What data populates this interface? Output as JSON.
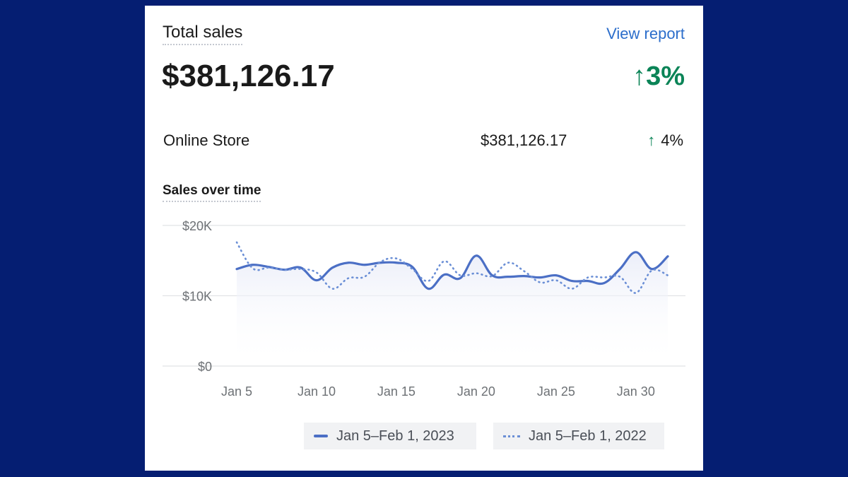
{
  "header": {
    "title": "Total sales",
    "view_report_label": "View report",
    "total_value": "$381,126.17",
    "total_change": "3%"
  },
  "breakdown": {
    "channel": "Online Store",
    "value": "$381,126.17",
    "change": "4%"
  },
  "chart_section": {
    "title": "Sales over time"
  },
  "colors": {
    "accent": "#2c6ecb",
    "positive": "#0b8457",
    "series_current": "#4b6fc5",
    "series_previous": "#6b8fd6",
    "background": "#051e72"
  },
  "chart_data": {
    "type": "line",
    "title": "Sales over time",
    "xlabel": "",
    "ylabel": "",
    "ylim": [
      0,
      20000
    ],
    "y_ticks": [
      0,
      10000,
      20000
    ],
    "y_tick_labels": [
      "$0",
      "$10K",
      "$20K"
    ],
    "x_tick_days": [
      5,
      10,
      15,
      20,
      25,
      30
    ],
    "x_tick_labels": [
      "Jan 5",
      "Jan 10",
      "Jan 15",
      "Jan 20",
      "Jan 25",
      "Jan 30"
    ],
    "grid": true,
    "legend_position": "bottom",
    "x": [
      "Jan 5",
      "Jan 6",
      "Jan 7",
      "Jan 8",
      "Jan 9",
      "Jan 10",
      "Jan 11",
      "Jan 12",
      "Jan 13",
      "Jan 14",
      "Jan 15",
      "Jan 16",
      "Jan 17",
      "Jan 18",
      "Jan 19",
      "Jan 20",
      "Jan 21",
      "Jan 22",
      "Jan 23",
      "Jan 24",
      "Jan 25",
      "Jan 26",
      "Jan 27",
      "Jan 28",
      "Jan 29",
      "Jan 30",
      "Jan 31",
      "Feb 1"
    ],
    "series": [
      {
        "name": "Jan 5–Feb 1, 2023",
        "style": "solid",
        "values": [
          13800,
          14400,
          14100,
          13700,
          14000,
          12200,
          14000,
          14700,
          14400,
          14700,
          14700,
          14100,
          11000,
          13000,
          12500,
          15700,
          12900,
          12700,
          12800,
          12600,
          12900,
          12100,
          12100,
          11800,
          13800,
          16200,
          13800,
          15600
        ]
      },
      {
        "name": "Jan 5–Feb 1, 2022",
        "style": "dotted",
        "values": [
          17600,
          13900,
          14000,
          13700,
          13800,
          13300,
          11000,
          12500,
          12700,
          14800,
          15300,
          13800,
          12100,
          14900,
          12900,
          13200,
          12800,
          14700,
          13500,
          11900,
          12200,
          11000,
          12600,
          12600,
          12700,
          10400,
          13600,
          12900
        ]
      }
    ]
  }
}
